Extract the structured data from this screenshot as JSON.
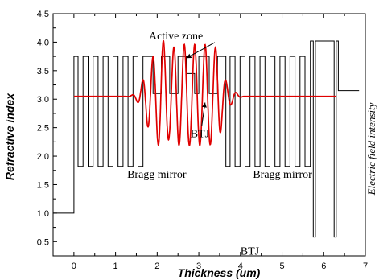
{
  "chart_data": {
    "type": "line",
    "title": "",
    "xlabel": "Thickness (um)",
    "ylabel": "Refractive index",
    "y2label": "Electric field intensity",
    "xlim": [
      -0.5,
      7
    ],
    "ylim": [
      0.25,
      4.5
    ],
    "xticks": [
      "0",
      "1",
      "2",
      "3",
      "4",
      "5",
      "6",
      "7"
    ],
    "yticks": [
      "0.5",
      "1.0",
      "1.5",
      "2.0",
      "2.5",
      "3.0",
      "3.5",
      "4.0",
      "4.5"
    ],
    "grid": false,
    "series": [
      {
        "role": "refractive-index-profile",
        "color": "#000000",
        "high_n": 3.75,
        "low_n": 1.82,
        "x": [
          -0.5,
          0.0,
          0.0,
          0.1,
          0.1,
          0.22,
          0.22,
          0.34,
          0.34,
          0.46,
          0.46,
          0.58,
          0.58,
          0.7,
          0.7,
          0.82,
          0.82,
          0.94,
          0.94,
          1.06,
          1.06,
          1.18,
          1.18,
          1.3,
          1.3,
          1.42,
          1.42,
          1.54,
          1.54,
          1.66,
          1.66,
          1.9,
          1.9,
          2.1,
          2.1,
          2.3,
          2.3,
          2.5,
          2.5,
          2.7,
          2.7,
          2.9,
          2.9,
          3.0,
          3.0,
          3.25,
          3.25,
          3.45,
          3.45,
          3.65,
          3.65,
          3.75,
          3.75,
          3.87,
          3.87,
          3.99,
          3.99,
          4.11,
          4.11,
          4.23,
          4.23,
          4.35,
          4.35,
          4.47,
          4.47,
          4.59,
          4.59,
          4.71,
          4.71,
          4.83,
          4.83,
          4.95,
          4.95,
          5.07,
          5.07,
          5.19,
          5.19,
          5.31,
          5.31,
          5.43,
          5.43,
          5.55,
          5.55,
          5.68,
          5.68,
          5.75,
          5.75,
          5.8,
          5.8,
          6.25,
          6.25,
          6.3,
          6.3,
          6.35,
          6.35,
          6.85
        ],
        "y": [
          1.0,
          1.0,
          3.75,
          3.75,
          1.82,
          1.82,
          3.75,
          3.75,
          1.82,
          1.82,
          3.75,
          3.75,
          1.82,
          1.82,
          3.75,
          3.75,
          1.82,
          1.82,
          3.75,
          3.75,
          1.82,
          1.82,
          3.75,
          3.75,
          1.82,
          1.82,
          3.75,
          3.75,
          1.82,
          1.82,
          3.75,
          3.75,
          3.1,
          3.1,
          3.75,
          3.75,
          3.1,
          3.1,
          3.75,
          3.75,
          3.45,
          3.45,
          3.1,
          3.1,
          3.75,
          3.75,
          3.1,
          3.1,
          3.75,
          3.75,
          1.82,
          1.82,
          3.75,
          3.75,
          1.82,
          1.82,
          3.75,
          3.75,
          1.82,
          1.82,
          3.75,
          3.75,
          1.82,
          1.82,
          3.75,
          3.75,
          1.82,
          1.82,
          3.75,
          3.75,
          1.82,
          1.82,
          3.75,
          3.75,
          1.82,
          1.82,
          3.75,
          3.75,
          1.82,
          1.82,
          3.75,
          3.75,
          1.82,
          1.82,
          4.02,
          4.02,
          0.58,
          0.58,
          4.02,
          4.02,
          0.58,
          0.58,
          4.02,
          4.02,
          3.15,
          3.15
        ]
      },
      {
        "role": "electric-field-intensity",
        "color": "#e00000",
        "baseline": 3.05,
        "x_start": 0.0,
        "x_end": 6.3,
        "peaks": [
          {
            "x": 1.7,
            "y": 3.18
          },
          {
            "x": 1.9,
            "y": 3.62
          },
          {
            "x": 2.15,
            "y": 3.83
          },
          {
            "x": 2.43,
            "y": 3.83
          },
          {
            "x": 2.68,
            "y": 3.83
          },
          {
            "x": 2.93,
            "y": 3.83
          },
          {
            "x": 3.18,
            "y": 3.83
          },
          {
            "x": 3.43,
            "y": 3.78
          },
          {
            "x": 3.68,
            "y": 3.22
          },
          {
            "x": 4.05,
            "y": 3.05
          },
          {
            "x": 4.4,
            "y": 3.01
          }
        ]
      }
    ],
    "annotations": [
      {
        "name": "active-zone",
        "text": "Active zone",
        "x": 1.8,
        "y": 4.05,
        "arrow_to": [
          2.7,
          3.72
        ]
      },
      {
        "name": "btj-mid",
        "text": "BTJ",
        "x": 2.8,
        "y": 2.33,
        "arrow_to": [
          3.15,
          2.94
        ]
      },
      {
        "name": "bragg-left",
        "text": "Bragg mirror",
        "x": 1.28,
        "y": 1.62
      },
      {
        "name": "bragg-right",
        "text": "Bragg mirror",
        "x": 4.3,
        "y": 1.62
      },
      {
        "name": "btj-bottom",
        "text": "BTJ",
        "x": 4.0,
        "y": 0.27
      }
    ]
  }
}
